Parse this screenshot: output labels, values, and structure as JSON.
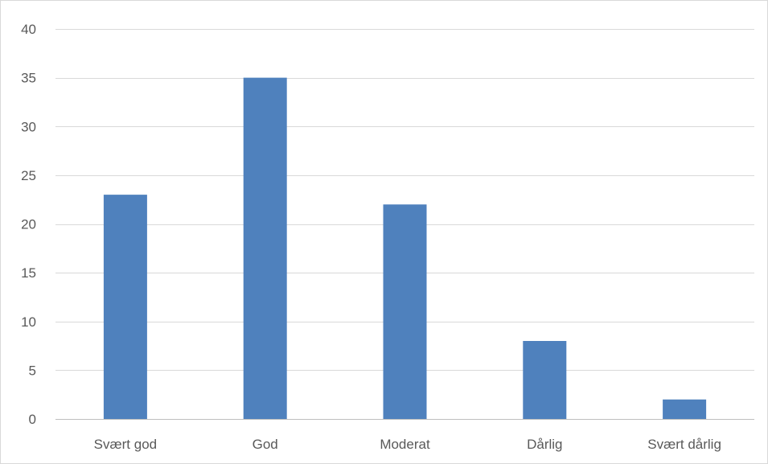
{
  "chart_data": {
    "type": "bar",
    "categories": [
      "Svært god",
      "God",
      "Moderat",
      "Dårlig",
      "Svært dårlig"
    ],
    "values": [
      23,
      35,
      22,
      8,
      2
    ],
    "title": "",
    "xlabel": "",
    "ylabel": "",
    "ylim": [
      0,
      40
    ],
    "yticks": [
      0,
      5,
      10,
      15,
      20,
      25,
      30,
      35,
      40
    ],
    "grid": true,
    "legend": "none",
    "bar_color": "#4f81bd"
  }
}
